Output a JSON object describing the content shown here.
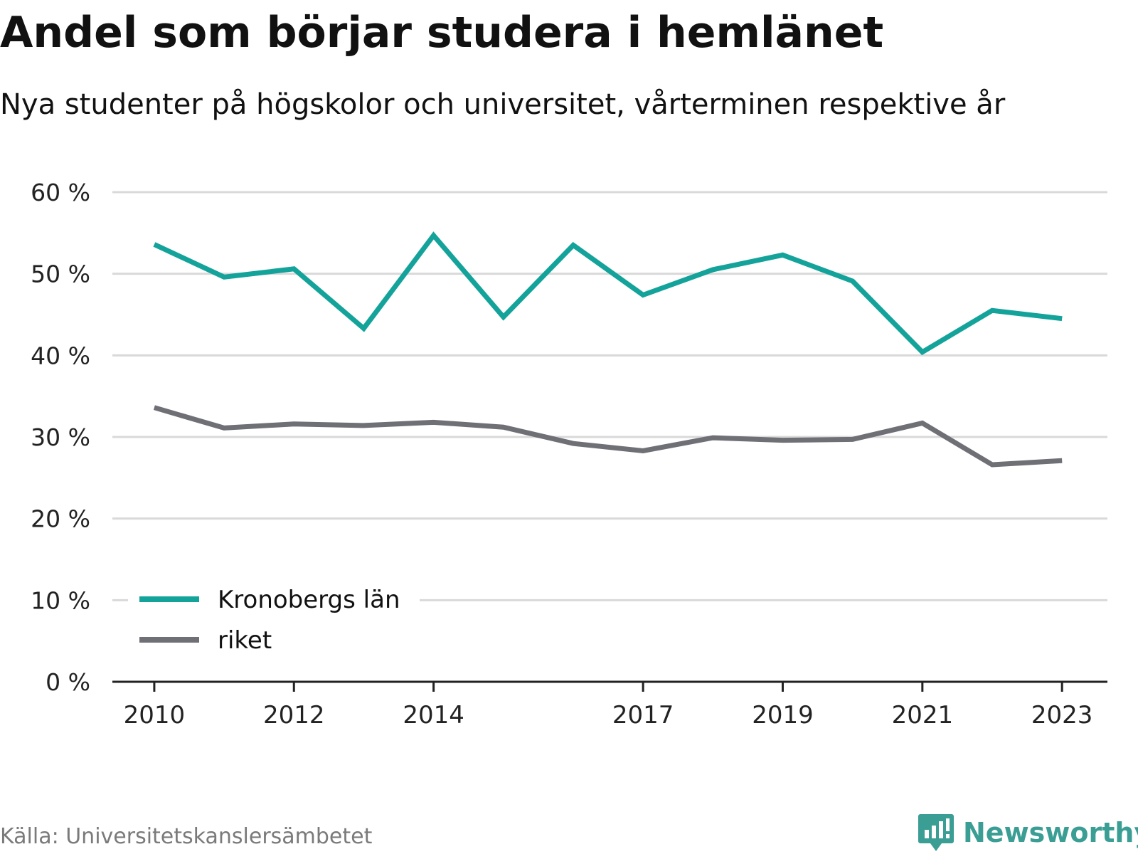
{
  "title": "Andel som börjar studera i hemlänet",
  "subtitle": "Nya studenter på högskolor och universitet, vårterminen respektive år",
  "source": "Källa: Universitetskanslersämbetet",
  "brand": {
    "name": "Newsworthy",
    "icon": "newsworthy-logo-icon",
    "color": "#3a9e94"
  },
  "colors": {
    "kronoberg": "#14a39a",
    "riket": "#6f6f76",
    "grid": "#d9d9d9",
    "axis": "#222222",
    "tick_text": "#222222"
  },
  "chart_data": {
    "type": "line",
    "title": "Andel som börjar studera i hemlänet",
    "subtitle": "Nya studenter på högskolor och universitet, vårterminen respektive år",
    "xlabel": "",
    "ylabel": "",
    "x": [
      2010,
      2011,
      2012,
      2013,
      2014,
      2015,
      2016,
      2017,
      2018,
      2019,
      2020,
      2021,
      2022,
      2023
    ],
    "x_tick_labels": [
      "2010",
      "2012",
      "2014",
      "2017",
      "2019",
      "2021",
      "2023"
    ],
    "x_tick_values": [
      2010,
      2012,
      2014,
      2017,
      2019,
      2021,
      2023
    ],
    "xlim": [
      2009.4,
      2023.65
    ],
    "ylim": [
      0,
      60
    ],
    "y_ticks": [
      0,
      10,
      20,
      30,
      40,
      50,
      60
    ],
    "y_tick_labels": [
      "0 %",
      "10 %",
      "20 %",
      "30 %",
      "40 %",
      "50 %",
      "60 %"
    ],
    "grid": true,
    "legend_position": "bottom-left",
    "series": [
      {
        "name": "Kronobergs län",
        "color": "#14a39a",
        "values": [
          53.6,
          49.6,
          50.6,
          43.3,
          54.7,
          44.7,
          53.5,
          47.4,
          50.5,
          52.3,
          49.1,
          40.4,
          45.5,
          44.5
        ]
      },
      {
        "name": "riket",
        "color": "#6f6f76",
        "values": [
          33.6,
          31.1,
          31.6,
          31.4,
          31.8,
          31.2,
          29.2,
          28.3,
          29.9,
          29.6,
          29.7,
          31.7,
          26.6,
          27.1
        ]
      }
    ]
  }
}
